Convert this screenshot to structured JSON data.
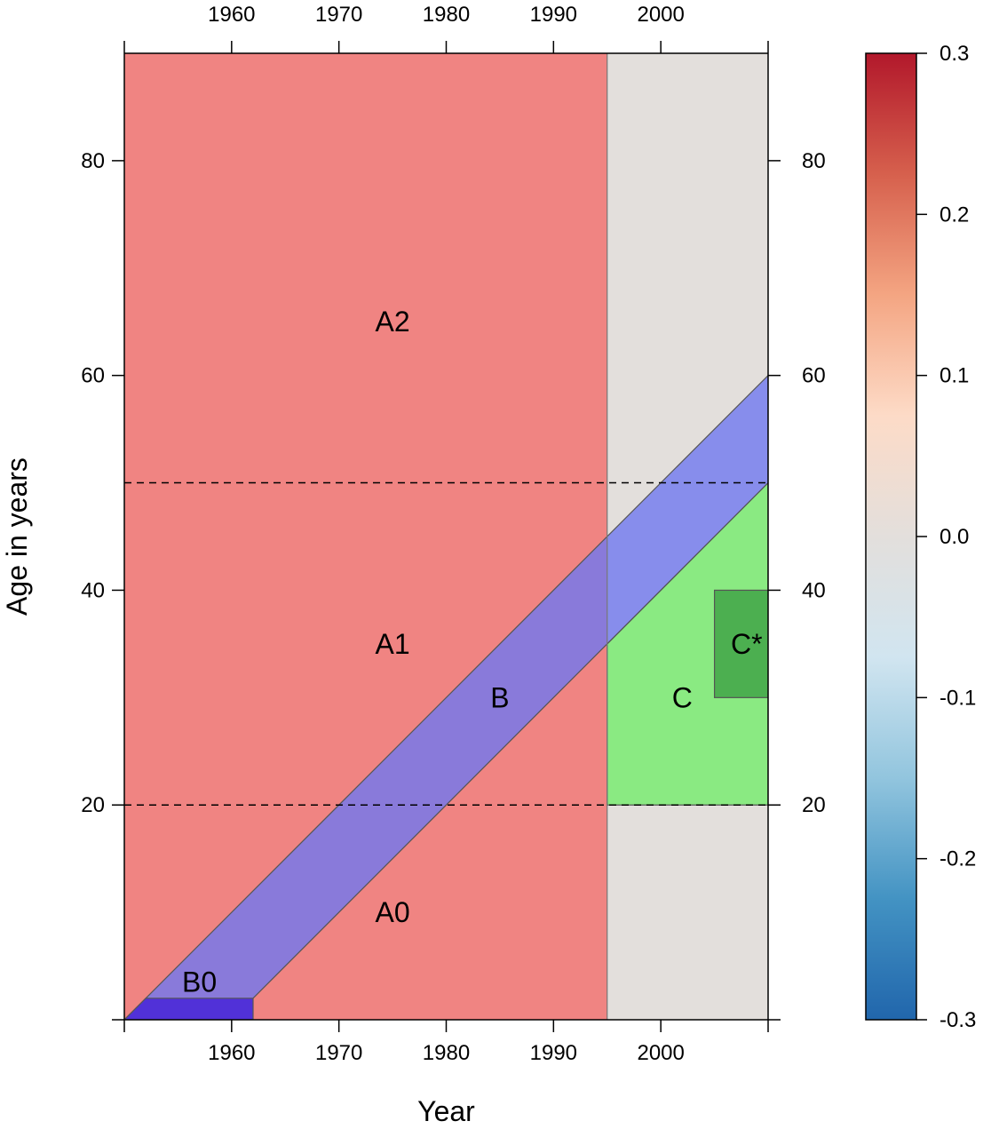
{
  "chart_data": {
    "type": "area",
    "title": "",
    "xlabel": "Year",
    "ylabel": "Age in years",
    "xlim": [
      1950,
      2010
    ],
    "ylim": [
      0,
      90
    ],
    "x_ticks": [
      1960,
      1970,
      1980,
      1990,
      2000
    ],
    "y_ticks": [
      20,
      40,
      60,
      80
    ],
    "reference_lines": [
      {
        "axis": "y",
        "value": 20,
        "style": "dashed"
      },
      {
        "axis": "y",
        "value": 50,
        "style": "dashed"
      }
    ],
    "regions": [
      {
        "label": "",
        "shape": "rect",
        "x": [
          1995,
          2010
        ],
        "y": [
          0,
          90
        ],
        "color": "#e3dfdc"
      },
      {
        "label": "",
        "shape": "rect",
        "x": [
          1950,
          1995
        ],
        "y": [
          0,
          90
        ],
        "color": "#f08482"
      },
      {
        "label": "C",
        "shape": "polygon",
        "points": [
          [
            1995,
            20
          ],
          [
            2010,
            20
          ],
          [
            2010,
            50
          ],
          [
            1995,
            35
          ]
        ],
        "color": "#8aea82"
      },
      {
        "label": "C*",
        "shape": "rect",
        "x": [
          2005,
          2010
        ],
        "y": [
          30,
          40
        ],
        "color": "#4caf50"
      },
      {
        "label": "B",
        "shape": "polygon",
        "points": [
          [
            1950,
            0
          ],
          [
            1960,
            0
          ],
          [
            2010,
            50
          ],
          [
            2010,
            60
          ]
        ],
        "color": "#6f78f0",
        "opacity": 0.8
      },
      {
        "label": "B0",
        "shape": "polygon",
        "points": [
          [
            1950,
            0
          ],
          [
            1962,
            0
          ],
          [
            1962,
            2
          ],
          [
            1952,
            2
          ]
        ],
        "color": "#5131d8"
      }
    ],
    "labels": [
      {
        "text": "A2",
        "x": 1975,
        "y": 65
      },
      {
        "text": "A1",
        "x": 1975,
        "y": 35
      },
      {
        "text": "A0",
        "x": 1975,
        "y": 10
      },
      {
        "text": "B",
        "x": 1985,
        "y": 30
      },
      {
        "text": "B0",
        "x": 1957,
        "y": 3.5
      },
      {
        "text": "C",
        "x": 2002,
        "y": 30
      },
      {
        "text": "C*",
        "x": 2008,
        "y": 35
      }
    ],
    "colorbar": {
      "range": [
        -0.3,
        0.3
      ],
      "ticks": [
        "0.3",
        "0.2",
        "0.1",
        "0.0",
        "-0.1",
        "-0.2",
        "-0.3"
      ],
      "colormap": [
        "#b2182b",
        "#d6604d",
        "#f4a582",
        "#fddbc7",
        "#e3dfdc",
        "#d1e5f0",
        "#92c5de",
        "#4393c3",
        "#2166ac"
      ]
    }
  }
}
